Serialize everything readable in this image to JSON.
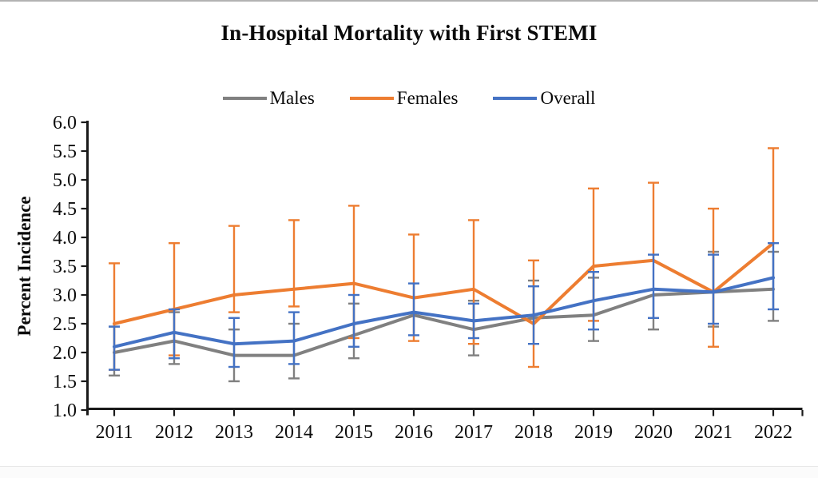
{
  "page": {
    "background": "#ffffff",
    "top_border_color": "#b3b3b3",
    "bottom_line_color": "#e8e8e8"
  },
  "chart_data": {
    "type": "line",
    "title": "In-Hospital Mortality with First STEMI",
    "ylabel": "Percent Incidence",
    "xlabel": "",
    "ylim": [
      1.0,
      6.0
    ],
    "ytick_step": 0.5,
    "ytick_labels": [
      "6.0",
      "5.5",
      "5.0",
      "4.5",
      "4.0",
      "3.5",
      "3.0",
      "2.5",
      "2.0",
      "1.5",
      "1.0"
    ],
    "categories": [
      "2011",
      "2012",
      "2013",
      "2014",
      "2015",
      "2016",
      "2017",
      "2018",
      "2019",
      "2020",
      "2021",
      "2022"
    ],
    "grid": false,
    "legend_position": "top",
    "axis_color": "#1a1a1a",
    "error_bars": true,
    "series": [
      {
        "name": "Males",
        "color": "#808080",
        "values": [
          2.0,
          2.2,
          1.95,
          1.95,
          2.3,
          2.65,
          2.4,
          2.6,
          2.65,
          3.0,
          3.05,
          3.1
        ],
        "err_lo": [
          1.6,
          1.8,
          1.5,
          1.55,
          1.9,
          null,
          1.95,
          null,
          2.2,
          2.4,
          2.45,
          2.55
        ],
        "err_hi": [
          2.45,
          2.7,
          2.4,
          2.5,
          2.85,
          null,
          2.9,
          3.25,
          3.3,
          null,
          3.75,
          3.75
        ]
      },
      {
        "name": "Females",
        "color": "#ED7D31",
        "values": [
          2.5,
          2.75,
          3.0,
          3.1,
          3.2,
          2.95,
          3.1,
          2.5,
          3.5,
          3.6,
          3.05,
          3.9
        ],
        "err_lo": [
          1.7,
          1.95,
          2.7,
          2.8,
          2.25,
          2.2,
          2.15,
          1.75,
          2.55,
          null,
          2.1,
          null
        ],
        "err_hi": [
          3.55,
          3.9,
          4.2,
          4.3,
          4.55,
          4.05,
          4.3,
          3.6,
          4.85,
          4.95,
          4.5,
          5.55
        ]
      },
      {
        "name": "Overall",
        "color": "#4472C4",
        "values": [
          2.1,
          2.35,
          2.15,
          2.2,
          2.5,
          2.7,
          2.55,
          2.65,
          2.9,
          3.1,
          3.05,
          3.3
        ],
        "err_lo": [
          1.7,
          1.9,
          1.75,
          1.8,
          2.1,
          2.3,
          2.25,
          2.15,
          2.4,
          2.6,
          2.5,
          2.75
        ],
        "err_hi": [
          2.45,
          2.75,
          2.6,
          2.7,
          3.0,
          3.2,
          2.85,
          3.15,
          3.4,
          3.7,
          3.7,
          3.9
        ]
      }
    ]
  }
}
